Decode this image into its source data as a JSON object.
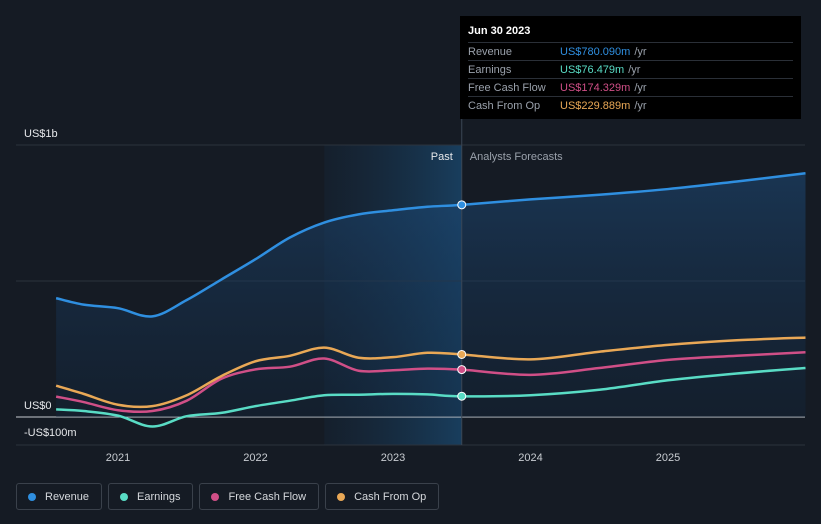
{
  "chart_data": {
    "type": "line",
    "title": "",
    "y_axis": {
      "ticks": [
        "US$1b",
        "US$0",
        "-US$100m"
      ],
      "tick_values": [
        1000,
        0,
        -100
      ],
      "ylim": [
        -100,
        1000
      ]
    },
    "x_axis": {
      "ticks": [
        "2021",
        "2022",
        "2023",
        "2024",
        "2025"
      ],
      "tick_values": [
        2021,
        2022,
        2023,
        2024,
        2025
      ],
      "xlim": [
        2020.5,
        2026.0
      ]
    },
    "region_labels": {
      "past": "Past",
      "forecast": "Analysts Forecasts"
    },
    "divider_x": 2023.5,
    "highlight_start_x": 2022.5,
    "series": [
      {
        "name": "Revenue",
        "color": "#2f8fe0",
        "fill": true,
        "points": [
          [
            2020.55,
            437
          ],
          [
            2020.75,
            413
          ],
          [
            2021.0,
            400
          ],
          [
            2021.25,
            370
          ],
          [
            2021.5,
            430
          ],
          [
            2021.75,
            505
          ],
          [
            2022.0,
            580
          ],
          [
            2022.25,
            660
          ],
          [
            2022.5,
            715
          ],
          [
            2022.75,
            745
          ],
          [
            2023.0,
            760
          ],
          [
            2023.25,
            773
          ],
          [
            2023.5,
            780
          ],
          [
            2024.0,
            800
          ],
          [
            2024.5,
            817
          ],
          [
            2025.0,
            838
          ],
          [
            2025.5,
            866
          ],
          [
            2026.0,
            896
          ]
        ]
      },
      {
        "name": "Earnings",
        "color": "#59dcc5",
        "fill": false,
        "points": [
          [
            2020.55,
            28
          ],
          [
            2020.75,
            22
          ],
          [
            2021.0,
            5
          ],
          [
            2021.25,
            -35
          ],
          [
            2021.5,
            3
          ],
          [
            2021.75,
            15
          ],
          [
            2022.0,
            40
          ],
          [
            2022.25,
            60
          ],
          [
            2022.5,
            80
          ],
          [
            2022.75,
            82
          ],
          [
            2023.0,
            85
          ],
          [
            2023.25,
            83
          ],
          [
            2023.5,
            76
          ],
          [
            2024.0,
            80
          ],
          [
            2024.5,
            100
          ],
          [
            2025.0,
            135
          ],
          [
            2025.5,
            160
          ],
          [
            2026.0,
            180
          ]
        ]
      },
      {
        "name": "Free Cash Flow",
        "color": "#d04f87",
        "fill": false,
        "points": [
          [
            2020.55,
            75
          ],
          [
            2020.75,
            55
          ],
          [
            2021.0,
            25
          ],
          [
            2021.25,
            22
          ],
          [
            2021.5,
            60
          ],
          [
            2021.75,
            140
          ],
          [
            2022.0,
            175
          ],
          [
            2022.25,
            185
          ],
          [
            2022.5,
            215
          ],
          [
            2022.75,
            170
          ],
          [
            2023.0,
            172
          ],
          [
            2023.25,
            178
          ],
          [
            2023.5,
            174
          ],
          [
            2024.0,
            155
          ],
          [
            2024.5,
            180
          ],
          [
            2025.0,
            210
          ],
          [
            2025.5,
            225
          ],
          [
            2026.0,
            238
          ]
        ]
      },
      {
        "name": "Cash From Op",
        "color": "#e9a856",
        "fill": false,
        "points": [
          [
            2020.55,
            115
          ],
          [
            2020.75,
            85
          ],
          [
            2021.0,
            45
          ],
          [
            2021.25,
            40
          ],
          [
            2021.5,
            80
          ],
          [
            2021.75,
            150
          ],
          [
            2022.0,
            205
          ],
          [
            2022.25,
            225
          ],
          [
            2022.5,
            255
          ],
          [
            2022.75,
            218
          ],
          [
            2023.0,
            220
          ],
          [
            2023.25,
            236
          ],
          [
            2023.5,
            230
          ],
          [
            2024.0,
            212
          ],
          [
            2024.5,
            240
          ],
          [
            2025.0,
            265
          ],
          [
            2025.5,
            282
          ],
          [
            2026.0,
            292
          ]
        ]
      }
    ],
    "tooltip": {
      "date": "Jun 30 2023",
      "x": 2023.5,
      "rows": [
        {
          "label": "Revenue",
          "value": "US$780.090m",
          "unit": "/yr",
          "color": "#2f8fe0",
          "y": 780.09
        },
        {
          "label": "Earnings",
          "value": "US$76.479m",
          "unit": "/yr",
          "color": "#59dcc5",
          "y": 76.479
        },
        {
          "label": "Free Cash Flow",
          "value": "US$174.329m",
          "unit": "/yr",
          "color": "#d04f87",
          "y": 174.329
        },
        {
          "label": "Cash From Op",
          "value": "US$229.889m",
          "unit": "/yr",
          "color": "#e9a856",
          "y": 229.889
        }
      ]
    },
    "legend": [
      {
        "label": "Revenue",
        "color": "#2f8fe0"
      },
      {
        "label": "Earnings",
        "color": "#59dcc5"
      },
      {
        "label": "Free Cash Flow",
        "color": "#d04f87"
      },
      {
        "label": "Cash From Op",
        "color": "#e9a856"
      }
    ]
  }
}
